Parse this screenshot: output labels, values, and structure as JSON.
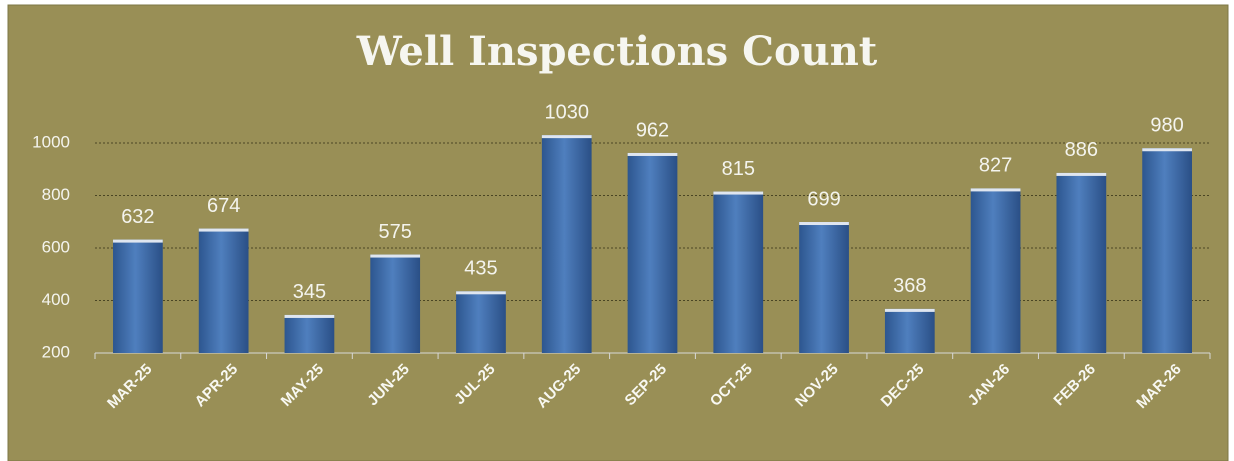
{
  "chart_data": {
    "type": "bar",
    "title": "Well Inspections Count",
    "categories": [
      "MAR-25",
      "APR-25",
      "MAY-25",
      "JUN-25",
      "JUL-25",
      "AUG-25",
      "SEP-25",
      "OCT-25",
      "NOV-25",
      "DEC-25",
      "JAN-26",
      "FEB-26",
      "MAR-26"
    ],
    "values": [
      632,
      674,
      345,
      575,
      435,
      1030,
      962,
      815,
      699,
      368,
      827,
      886,
      980
    ],
    "color": "#3f6fae",
    "ylim": [
      200,
      1100
    ],
    "yticks": [
      200,
      400,
      600,
      800,
      1000
    ],
    "grid": true
  }
}
